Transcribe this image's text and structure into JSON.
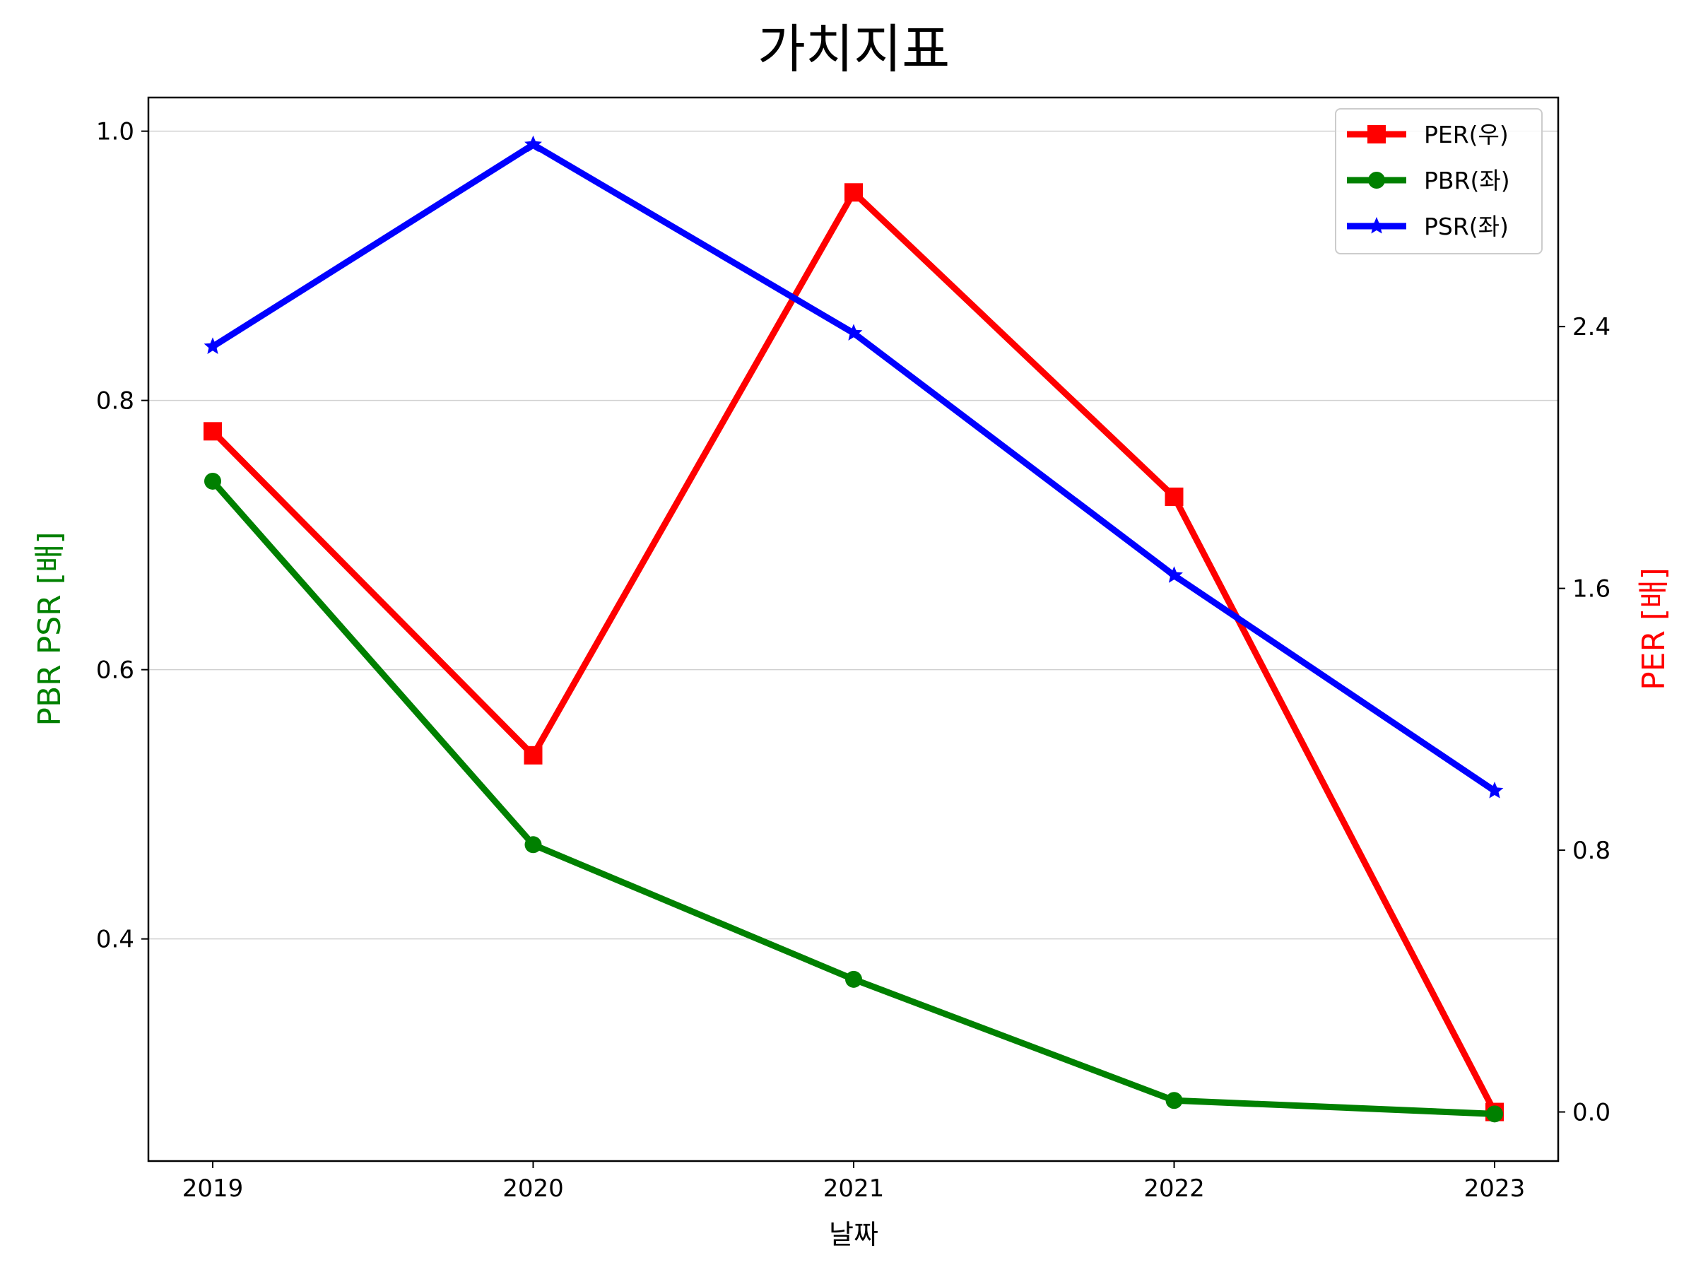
{
  "chart_data": {
    "type": "line",
    "title": "가치지표",
    "xlabel": "날짜",
    "ylabel_left": "PBR PSR [배]",
    "ylabel_right": "PER [배]",
    "categories": [
      "2019",
      "2020",
      "2021",
      "2022",
      "2023"
    ],
    "left_axis": {
      "ylim": [
        0.235,
        1.025
      ],
      "ticks": [
        0.4,
        0.6,
        0.8,
        1.0
      ],
      "tick_labels": [
        "0.4",
        "0.6",
        "0.8",
        "1.0"
      ],
      "label_color": "#008000"
    },
    "right_axis": {
      "ylim": [
        -0.15,
        3.1
      ],
      "ticks": [
        0.0,
        0.8,
        1.6,
        2.4
      ],
      "tick_labels": [
        "0.0",
        "0.8",
        "1.6",
        "2.4"
      ],
      "label_color": "#ff0000"
    },
    "grid": "horizontal (left axis)",
    "legend_position": "top-right",
    "series": [
      {
        "name": "PER(우)",
        "axis": "right",
        "color": "#ff0000",
        "marker": "square",
        "values": [
          2.08,
          1.09,
          2.81,
          1.88,
          0.0
        ]
      },
      {
        "name": "PBR(좌)",
        "axis": "left",
        "color": "#008000",
        "marker": "circle",
        "values": [
          0.74,
          0.47,
          0.37,
          0.28,
          0.27
        ]
      },
      {
        "name": "PSR(좌)",
        "axis": "left",
        "color": "#0000ff",
        "marker": "star",
        "values": [
          0.84,
          0.99,
          0.85,
          0.67,
          0.51
        ]
      }
    ]
  }
}
